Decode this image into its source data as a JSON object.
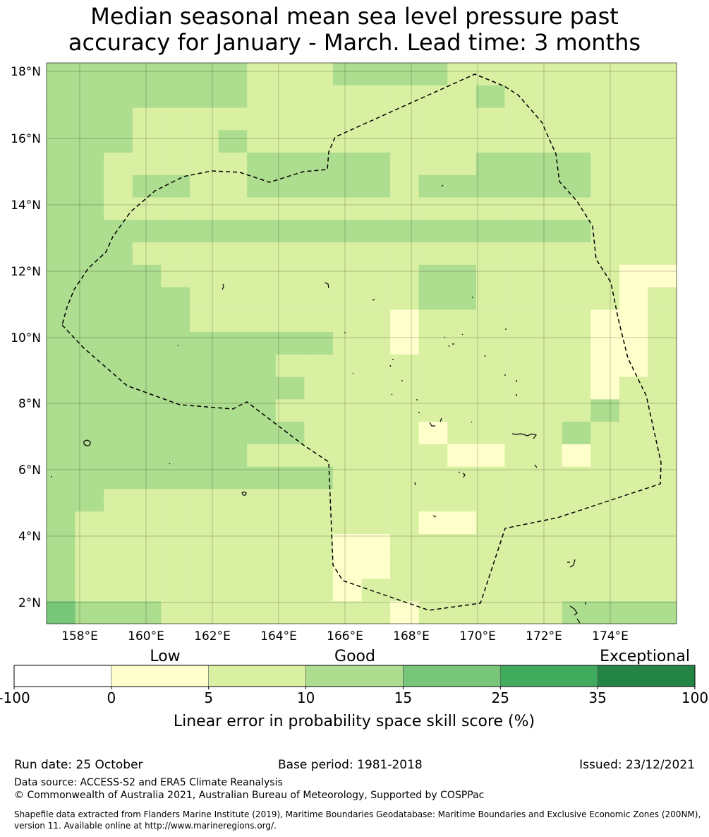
{
  "title": {
    "line1": "Median seasonal mean sea level pressure past",
    "line2": "accuracy for January - March. Lead time: 3 months"
  },
  "map": {
    "x_ticks": [
      "158°E",
      "160°E",
      "162°E",
      "164°E",
      "166°E",
      "168°E",
      "170°E",
      "172°E",
      "174°E"
    ],
    "y_ticks": [
      "18°N",
      "16°N",
      "14°N",
      "12°N",
      "10°N",
      "8°N",
      "6°N",
      "4°N",
      "2°N"
    ],
    "region_boundary": "dashed",
    "skill_grid": {
      "lon_range": [
        157.0,
        176.0
      ],
      "lat_range": [
        1.4,
        18.3
      ],
      "cell_size_deg": "~0.83",
      "note_values": "category index 0-6 per colorbar bin",
      "rows_north_to_south": [
        "3333333222333322222222",
        "3333333222222223222222",
        "3332222222222222222222",
        "3332223222222222222222",
        "3322222333332223333222",
        "3323322333332333333222",
        "3322222222222222222222",
        "3333333333333333333222",
        "3332222222222222222222",
        "3333222222222332222211",
        "3333322222222332222212",
        "3333322222221222222112",
        "3333333333221222222112",
        "3333333322222222222112",
        "3333333332222222222122",
        "3333333322222222222322",
        "3333333332222122223222",
        "3333333222222211221222",
        "3333333333222222222222",
        "3322222222222222222222",
        "3222222222222112222222",
        "3222222222112222222222",
        "3222222222112222222222",
        "3222222222122222222222",
        "4333222222221222223333"
      ]
    }
  },
  "colorbar": {
    "category_labels": [
      "Low",
      "Good",
      "Exceptional"
    ],
    "ticks": [
      "-100",
      "0",
      "5",
      "10",
      "15",
      "25",
      "35",
      "100"
    ],
    "colors": [
      "#ffffff",
      "#ffffcc",
      "#d9f0a3",
      "#addd8e",
      "#78c679",
      "#41ab5d",
      "#238443"
    ],
    "label": "Linear error in probability space skill score (%)"
  },
  "footer": {
    "run_date": "Run date: 25 October",
    "base_period": "Base period: 1981-2018",
    "issued": "Issued: 23/12/2021",
    "data_source": "Data source: ACCESS-S2 and ERA5 Climate Reanalysis",
    "copyright": "© Commonwealth of Australia 2021, Australian Bureau of Meteorology, Supported by COSPPac",
    "shapefile_line1": "Shapefile data extracted from Flanders Marine Institute (2019), Maritime Boundaries Geodatabase: Maritime Boundaries and Exclusive Economic Zones (200NM),",
    "shapefile_line2": "version 11. Available online at http://www.marineregions.org/."
  }
}
